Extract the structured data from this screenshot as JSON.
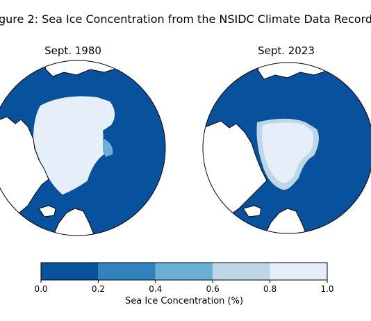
{
  "figure": {
    "title": "gure 2: Sea Ice Concentration from the NSIDC Climate Data Record"
  },
  "panels": [
    {
      "title": "Sept. 1980"
    },
    {
      "title": "Sept. 2023"
    }
  ],
  "colorbar": {
    "label": "Sea Ice Concentration (%)",
    "ticks": [
      "0.0",
      "0.2",
      "0.4",
      "0.6",
      "0.8",
      "1.0"
    ],
    "bins": [
      {
        "range": [
          0.0,
          0.2
        ],
        "color": "#08519c"
      },
      {
        "range": [
          0.2,
          0.4
        ],
        "color": "#3182bd"
      },
      {
        "range": [
          0.4,
          0.6
        ],
        "color": "#6baed6"
      },
      {
        "range": [
          0.6,
          0.8
        ],
        "color": "#bdd7e7"
      },
      {
        "range": [
          0.8,
          1.0
        ],
        "color": "#e6eff9"
      }
    ]
  },
  "colors": {
    "ocean": "#08519c",
    "land": "#ffffff",
    "coastline": "#000000"
  }
}
